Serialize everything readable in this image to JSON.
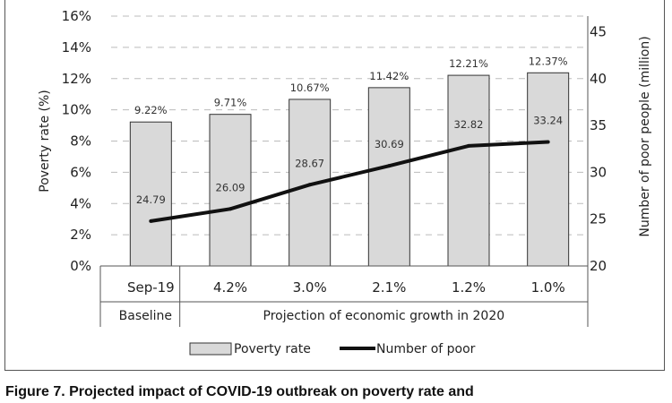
{
  "chart_data": {
    "type": "bar",
    "categories": [
      "Sep-19",
      "4.2%",
      "3.0%",
      "2.1%",
      "1.2%",
      "1.0%"
    ],
    "category_groups": [
      {
        "label": "Baseline",
        "span": 1
      },
      {
        "label": "Projection of economic growth in 2020",
        "span": 5
      }
    ],
    "series": [
      {
        "name": "Poverty rate",
        "type": "bar",
        "axis": "left",
        "values": [
          9.22,
          9.71,
          10.67,
          11.42,
          12.21,
          12.37
        ],
        "labels": [
          "9.22%",
          "9.71%",
          "10.67%",
          "11.42%",
          "12.21%",
          "12.37%"
        ],
        "color": "#d9d9d9"
      },
      {
        "name": "Number of poor",
        "type": "line",
        "axis": "right",
        "values": [
          24.79,
          26.09,
          28.67,
          30.69,
          32.82,
          33.24
        ],
        "labels": [
          "24.79",
          "26.09",
          "28.67",
          "30.69",
          "32.82",
          "33.24"
        ],
        "color": "#111111"
      }
    ],
    "ylabel": "Poverty rate (%)",
    "y2label": "Number of poor people (million)",
    "ylim": [
      0,
      16
    ],
    "y2lim": [
      20,
      46.67
    ],
    "yticks": [
      "0%",
      "2%",
      "4%",
      "6%",
      "8%",
      "10%",
      "12%",
      "14%",
      "16%"
    ],
    "y2ticks": [
      "20",
      "25",
      "30",
      "35",
      "40",
      "45"
    ],
    "grid": true,
    "legend_position": "bottom"
  },
  "caption": "Figure 7. Projected impact of COVID-19 outbreak on poverty rate and"
}
